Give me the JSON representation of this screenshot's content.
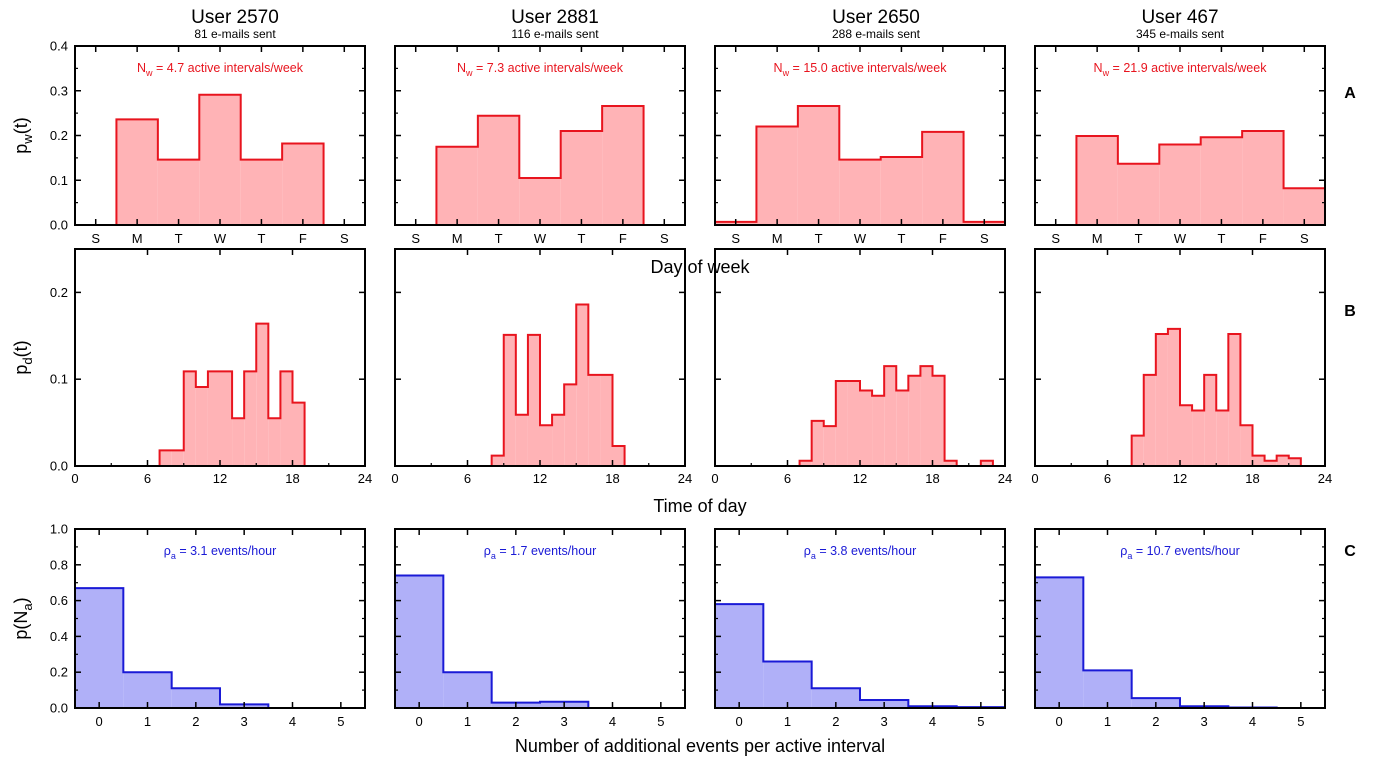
{
  "users": [
    {
      "title": "User 2570",
      "subtitle": "81 e-mails sent",
      "weekly_note": "N",
      "weekly_sub": "w",
      "weekly_text": " = 4.7 active intervals/week",
      "rho_sym": "ρ",
      "rho_sub": "a",
      "rho_text": " = 3.1 events/hour"
    },
    {
      "title": "User 2881",
      "subtitle": "116 e-mails sent",
      "weekly_note": "N",
      "weekly_sub": "w",
      "weekly_text": " = 7.3 active intervals/week",
      "rho_sym": "ρ",
      "rho_sub": "a",
      "rho_text": " = 1.7 events/hour"
    },
    {
      "title": "User 2650",
      "subtitle": "288 e-mails sent",
      "weekly_note": "N",
      "weekly_sub": "w",
      "weekly_text": " = 15.0 active intervals/week",
      "rho_sym": "ρ",
      "rho_sub": "a",
      "rho_text": " = 3.8 events/hour"
    },
    {
      "title": "User 467",
      "subtitle": "345 e-mails sent",
      "weekly_note": "N",
      "weekly_sub": "w",
      "weekly_text": " = 21.9 active intervals/week",
      "rho_sym": "ρ",
      "rho_sub": "a",
      "rho_text": " = 10.7 events/hour"
    }
  ],
  "rows": [
    {
      "label": "A",
      "ylabel_main": "p",
      "ylabel_sub": "w",
      "ylabel_tail": "(t)",
      "xlabel": "Day of week"
    },
    {
      "label": "B",
      "ylabel_main": "p",
      "ylabel_sub": "d",
      "ylabel_tail": "(t)",
      "xlabel": "Time of day"
    },
    {
      "label": "C",
      "ylabel_main": "p(N",
      "ylabel_sub": "a",
      "ylabel_tail": ")",
      "xlabel": "Number of additional events per active interval"
    }
  ],
  "colors": {
    "red_line": "#e8141e",
    "red_fill": "#ffb3b6",
    "blue_line": "#1a1ad6",
    "blue_fill": "#b0b0f8",
    "red_text": "#e8141e",
    "blue_text": "#1a1ad6"
  },
  "chart_data": [
    {
      "type": "bar",
      "row": "A",
      "xlabel": "Day of week",
      "ylabel": "p_w(t)",
      "categories": [
        "S",
        "M",
        "T",
        "W",
        "T",
        "F",
        "S"
      ],
      "ylim": [
        0,
        0.4
      ],
      "yticks": [
        "0.0",
        "0.1",
        "0.2",
        "0.3",
        "0.4"
      ],
      "series": [
        {
          "name": "User 2570",
          "values": [
            0.0,
            0.236,
            0.146,
            0.291,
            0.146,
            0.182,
            0.0
          ]
        },
        {
          "name": "User 2881",
          "values": [
            0.0,
            0.175,
            0.244,
            0.105,
            0.21,
            0.266,
            0.0
          ]
        },
        {
          "name": "User 2650",
          "values": [
            0.007,
            0.22,
            0.266,
            0.146,
            0.152,
            0.208,
            0.007
          ]
        },
        {
          "name": "User 467",
          "values": [
            0.0,
            0.199,
            0.137,
            0.18,
            0.196,
            0.21,
            0.082
          ]
        }
      ]
    },
    {
      "type": "bar",
      "row": "B",
      "xlabel": "Time of day",
      "ylabel": "p_d(t)",
      "x_bins_start_hour": [
        0,
        1,
        2,
        3,
        4,
        5,
        6,
        7,
        8,
        9,
        10,
        11,
        12,
        13,
        14,
        15,
        16,
        17,
        18,
        19,
        20,
        21,
        22,
        23
      ],
      "xlim": [
        0,
        24
      ],
      "xticks": [
        "0",
        "6",
        "12",
        "18",
        "24"
      ],
      "ylim": [
        0,
        0.25
      ],
      "yticks": [
        "0.0",
        "0.1",
        "0.2"
      ],
      "series": [
        {
          "name": "User 2570",
          "values": [
            0,
            0,
            0,
            0,
            0,
            0,
            0,
            0.018,
            0.018,
            0.109,
            0.091,
            0.109,
            0.109,
            0.055,
            0.109,
            0.164,
            0.055,
            0.109,
            0.073,
            0,
            0,
            0,
            0,
            0
          ]
        },
        {
          "name": "User 2881",
          "values": [
            0,
            0,
            0,
            0,
            0,
            0,
            0,
            0,
            0.012,
            0.151,
            0.059,
            0.151,
            0.047,
            0.059,
            0.094,
            0.186,
            0.105,
            0.105,
            0.023,
            0,
            0,
            0,
            0,
            0
          ]
        },
        {
          "name": "User 2650",
          "values": [
            0,
            0,
            0,
            0,
            0,
            0,
            0,
            0.006,
            0.052,
            0.046,
            0.098,
            0.098,
            0.087,
            0.081,
            0.115,
            0.087,
            0.104,
            0.115,
            0.104,
            0.006,
            0,
            0,
            0.006,
            0
          ]
        },
        {
          "name": "User 467",
          "values": [
            0,
            0,
            0,
            0,
            0,
            0,
            0,
            0,
            0.035,
            0.105,
            0.152,
            0.158,
            0.07,
            0.064,
            0.105,
            0.064,
            0.152,
            0.047,
            0.012,
            0.006,
            0.012,
            0.009,
            0,
            0
          ]
        }
      ]
    },
    {
      "type": "bar",
      "row": "C",
      "xlabel": "Number of additional events per active interval",
      "ylabel": "p(N_a)",
      "categories": [
        "0",
        "1",
        "2",
        "3",
        "4",
        "5"
      ],
      "ylim": [
        0,
        1.0
      ],
      "yticks": [
        "0.0",
        "0.2",
        "0.4",
        "0.6",
        "0.8",
        "1.0"
      ],
      "series": [
        {
          "name": "User 2570",
          "values": [
            0.67,
            0.2,
            0.11,
            0.02,
            0.0,
            0.0
          ]
        },
        {
          "name": "User 2881",
          "values": [
            0.74,
            0.2,
            0.03,
            0.035,
            0.0,
            0.0
          ]
        },
        {
          "name": "User 2650",
          "values": [
            0.58,
            0.26,
            0.11,
            0.045,
            0.01,
            0.005
          ]
        },
        {
          "name": "User 467",
          "values": [
            0.73,
            0.21,
            0.055,
            0.01,
            0.003,
            0.0
          ]
        }
      ]
    }
  ]
}
